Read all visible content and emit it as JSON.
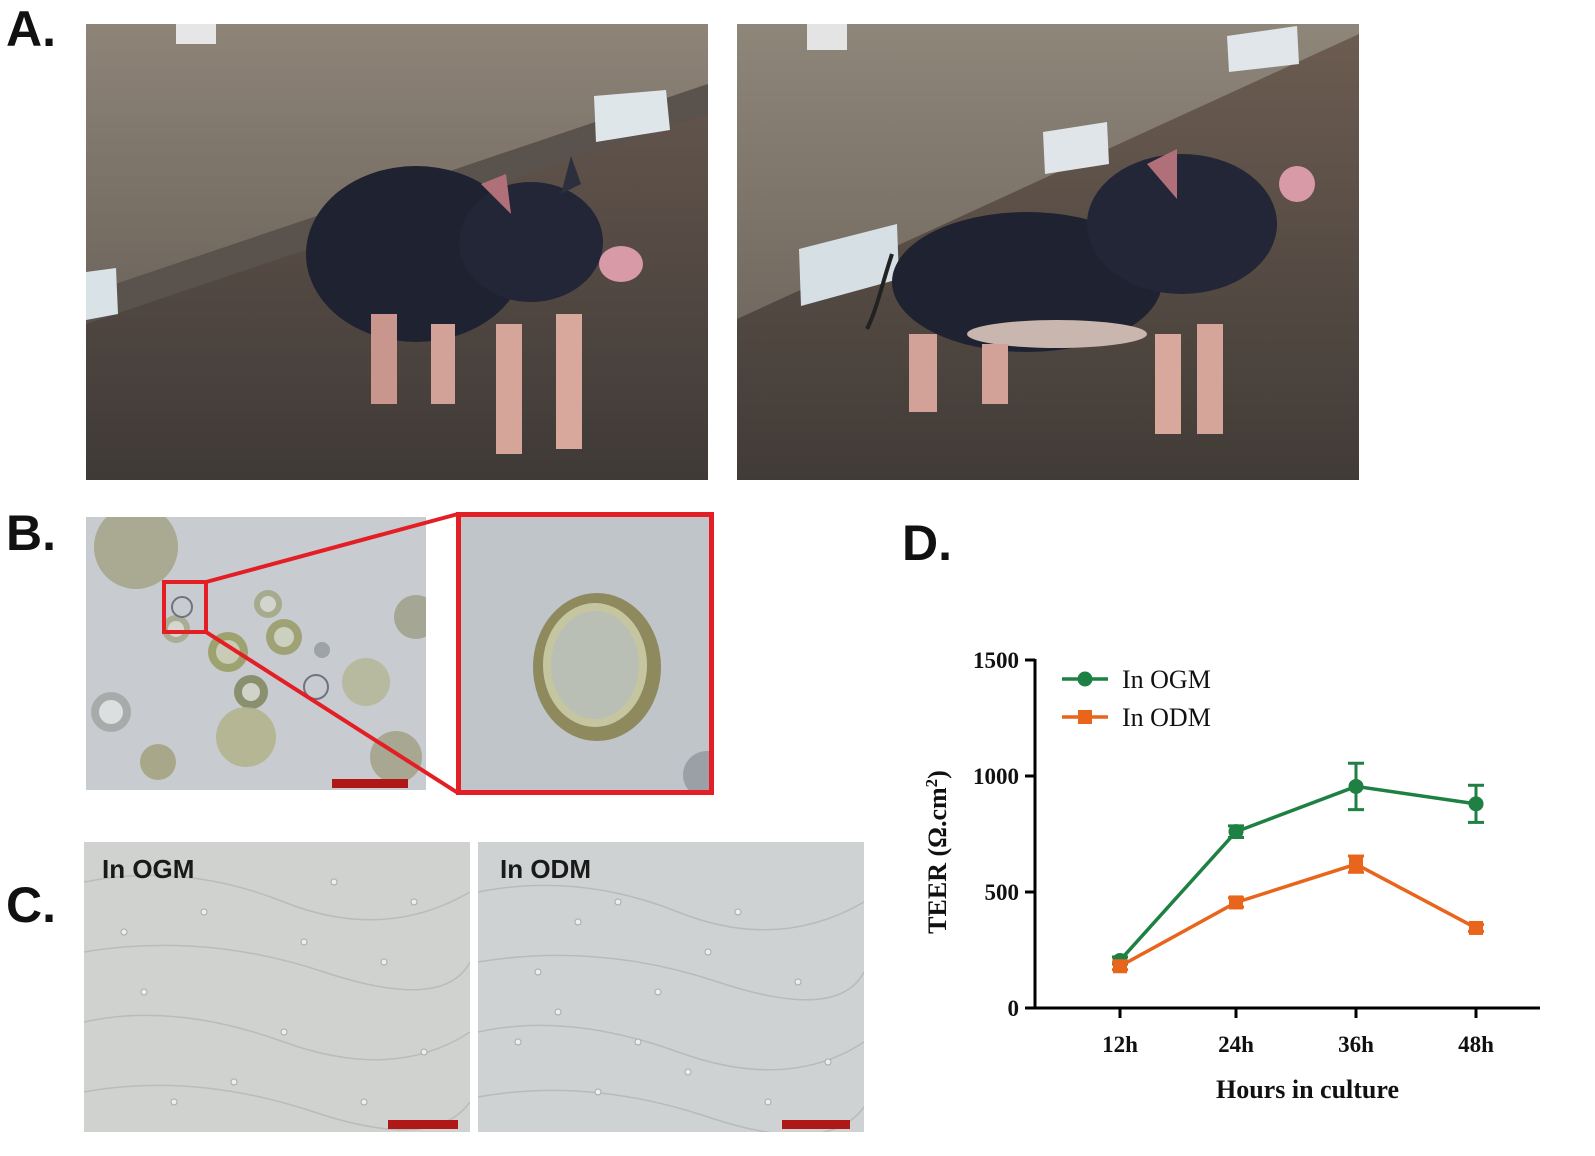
{
  "panels": {
    "a": {
      "letter": "A."
    },
    "b": {
      "letter": "B."
    },
    "c": {
      "letter": "C.",
      "left_label": "In OGM",
      "right_label": "In ODM"
    },
    "d": {
      "letter": "D."
    }
  },
  "colors": {
    "ogm": "#1e8042",
    "odm": "#e8651b",
    "zoom_box": "#e31e24",
    "scalebar": "#b01818"
  },
  "chart_data": {
    "type": "line",
    "categories": [
      "12h",
      "24h",
      "36h",
      "48h"
    ],
    "xlabel": "Hours in culture",
    "ylabel": "TEER (Ω.cm²)",
    "ylabel_main": "TEER (Ω.cm",
    "ylabel_sup": "2",
    "ylabel_close": ")",
    "ylim": [
      0,
      1500
    ],
    "yticks": [
      0,
      500,
      1000,
      1500
    ],
    "grid": false,
    "legend_position": "top-left",
    "series": [
      {
        "name": "In OGM",
        "values": [
          205,
          760,
          955,
          880
        ],
        "errors": [
          15,
          25,
          100,
          80
        ],
        "marker": "circle",
        "color": "#1e8042"
      },
      {
        "name": "In ODM",
        "values": [
          180,
          455,
          620,
          345
        ],
        "errors": [
          15,
          20,
          35,
          15
        ],
        "marker": "square",
        "color": "#e8651b"
      }
    ]
  }
}
